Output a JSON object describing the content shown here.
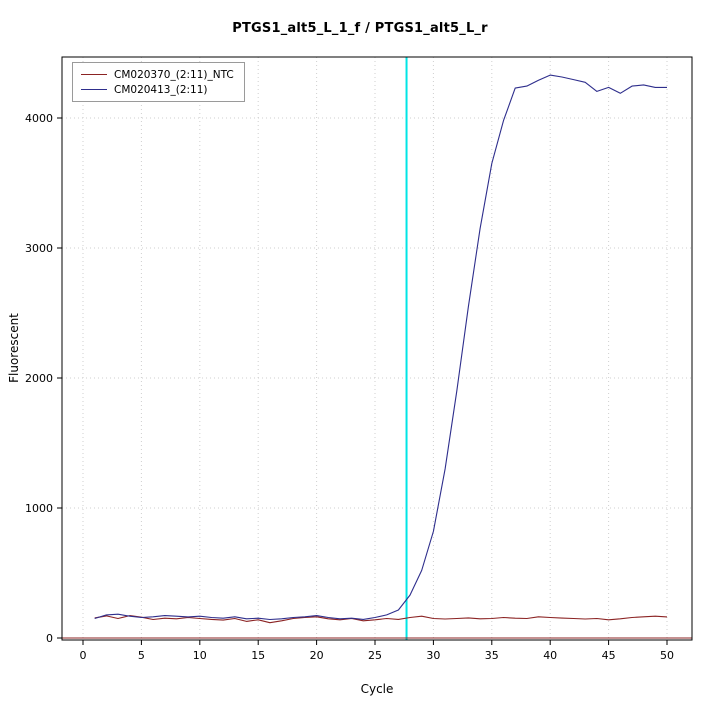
{
  "page": {
    "title": "PTGS1_alt5_L_1_f / PTGS1_alt5_L_r"
  },
  "chart_data": {
    "type": "line",
    "title": "PTGS1_alt5_L_1_f / PTGS1_alt5_L_r",
    "xlabel": "Cycle",
    "ylabel": "Fluorescent",
    "x_ticks": [
      0,
      5,
      10,
      15,
      20,
      25,
      30,
      35,
      40,
      45,
      50
    ],
    "y_ticks": [
      0,
      1000,
      2000,
      3000,
      4000
    ],
    "xlim": [
      -1.8,
      52.2
    ],
    "ylim": [
      -50,
      4470
    ],
    "grid": true,
    "grid_style": "dotted",
    "grid_color": "#cfcfcf",
    "legend_position": "top-left",
    "x": [
      1,
      2,
      3,
      4,
      5,
      6,
      7,
      8,
      9,
      10,
      11,
      12,
      13,
      14,
      15,
      16,
      17,
      18,
      19,
      20,
      21,
      22,
      23,
      24,
      25,
      26,
      27,
      28,
      29,
      30,
      31,
      32,
      33,
      34,
      35,
      36,
      37,
      38,
      39,
      40,
      41,
      42,
      43,
      44,
      45,
      46,
      47,
      48,
      49,
      50
    ],
    "series": [
      {
        "name": "CM020370_(2:11)_NTC",
        "color": "#8b2323",
        "values": [
          155,
          170,
          150,
          172,
          160,
          142,
          152,
          148,
          158,
          150,
          143,
          138,
          150,
          128,
          140,
          118,
          132,
          150,
          158,
          163,
          148,
          140,
          150,
          132,
          140,
          150,
          143,
          158,
          168,
          150,
          146,
          150,
          155,
          148,
          150,
          158,
          152,
          150,
          163,
          158,
          153,
          150,
          146,
          150,
          140,
          148,
          158,
          163,
          168,
          162
        ]
      },
      {
        "name": "CM020413_(2:11)",
        "color": "#2e2e8c",
        "values": [
          150,
          178,
          183,
          168,
          158,
          163,
          172,
          168,
          162,
          168,
          158,
          152,
          163,
          148,
          152,
          142,
          148,
          158,
          163,
          172,
          158,
          148,
          152,
          143,
          158,
          178,
          215,
          330,
          520,
          820,
          1300,
          1900,
          2550,
          3150,
          3650,
          3980,
          4230,
          4245,
          4290,
          4330,
          4315,
          4295,
          4275,
          4205,
          4235,
          4190,
          4245,
          4255,
          4235,
          4235
        ]
      }
    ],
    "baseline": {
      "y": 0,
      "color": "#8b2323"
    },
    "threshold_cycle_line": {
      "x": 27.7,
      "color": "#00e5e5"
    }
  }
}
